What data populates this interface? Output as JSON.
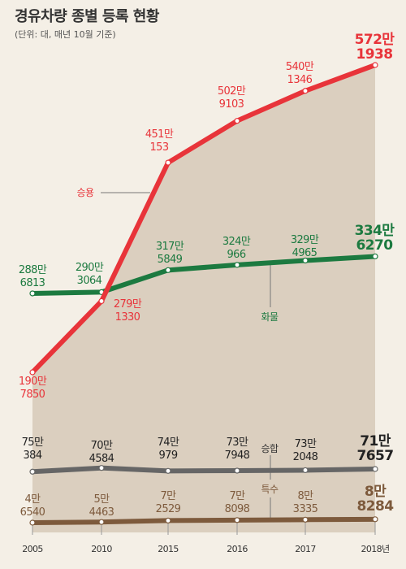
{
  "title": "경유차량 종별 등록 현황",
  "subtitle": "(단위: 대, 매년 10월 기준)",
  "colors": {
    "background": "#f4efe6",
    "area": "#dbcfbf",
    "passenger": "#e8343a",
    "cargo": "#1c7a40",
    "van": "#666666",
    "special": "#7d5a3c",
    "leader": "#777777"
  },
  "chart_data": {
    "type": "line",
    "x": [
      "2005",
      "2010",
      "2015",
      "2016",
      "2017",
      "2018년"
    ],
    "grid": false,
    "area_under": "승용",
    "series": [
      {
        "name": "승용",
        "key": "passenger",
        "values": [
          1907850,
          2791330,
          4510153,
          5029103,
          5401346,
          5721938
        ],
        "labels": [
          [
            "190만",
            "7850"
          ],
          [
            "279만",
            "1330"
          ],
          [
            "451만",
            "153"
          ],
          [
            "502만",
            "9103"
          ],
          [
            "540만",
            "1346"
          ],
          [
            "572만",
            "1938"
          ]
        ]
      },
      {
        "name": "화물",
        "key": "cargo",
        "values": [
          2886813,
          2903064,
          3175849,
          3240966,
          3294965,
          3346270
        ],
        "labels": [
          [
            "288만",
            "6813"
          ],
          [
            "290만",
            "3064"
          ],
          [
            "317만",
            "5849"
          ],
          [
            "324만",
            "966"
          ],
          [
            "329만",
            "4965"
          ],
          [
            "334만",
            "6270"
          ]
        ]
      },
      {
        "name": "승합",
        "key": "van",
        "values": [
          750384,
          704584,
          740979,
          737948,
          732048,
          717657
        ],
        "labels": [
          [
            "75만",
            "384"
          ],
          [
            "70만",
            "4584"
          ],
          [
            "74만",
            "979"
          ],
          [
            "73만",
            "7948"
          ],
          [
            "73만",
            "2048"
          ],
          [
            "71만",
            "7657"
          ]
        ]
      },
      {
        "name": "특수",
        "key": "special",
        "values": [
          46540,
          54463,
          72529,
          78098,
          83335,
          88284
        ],
        "labels": [
          [
            "4만",
            "6540"
          ],
          [
            "5만",
            "4463"
          ],
          [
            "7만",
            "2529"
          ],
          [
            "7만",
            "8098"
          ],
          [
            "8만",
            "3335"
          ],
          [
            "8만",
            "8284"
          ]
        ]
      }
    ]
  }
}
